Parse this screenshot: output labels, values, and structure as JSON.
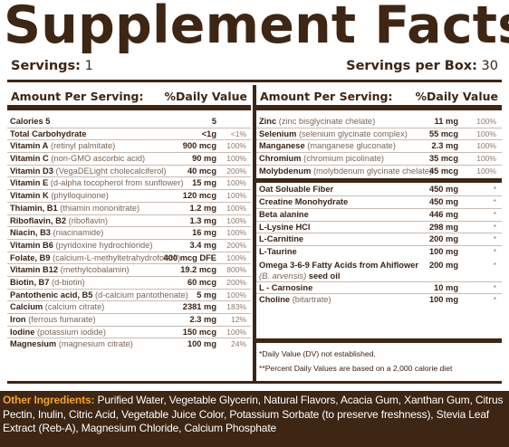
{
  "title": "Supplement Facts",
  "servings": {
    "label": "Servings:",
    "value": "1"
  },
  "servings_per_box": {
    "label": "Servings per Box:",
    "value": "30"
  },
  "left_header": {
    "amount": "Amount Per Serving:",
    "dv": "%Daily Value"
  },
  "right_header": {
    "amount": "Amount Per Serving:",
    "dv": "%Daily Value"
  },
  "left_rows": [
    {
      "name": "Calories 5",
      "detail": "",
      "amount": "5",
      "dv": ""
    },
    {
      "name": "Total Carbohydrate",
      "detail": "",
      "amount": "<1g",
      "dv": "<1%"
    },
    {
      "name": "Vitamin A",
      "detail": "(retinyl palmitate)",
      "amount": "900 mcg",
      "dv": "100%"
    },
    {
      "name": "Vitamin C",
      "detail": "(non-GMO ascorbic acid)",
      "amount": "90 mg",
      "dv": "100%"
    },
    {
      "name": "Vitamin D3",
      "detail": "(VegaDELight cholecalciferol)",
      "amount": "40 mcg",
      "dv": "200%"
    },
    {
      "name": "Vitamin E",
      "detail": "(d-alpha tocopherol from sunflower)",
      "amount": "15 mg",
      "dv": "100%"
    },
    {
      "name": "Vitamin K",
      "detail": "(phylloquinone)",
      "amount": "120 mcg",
      "dv": "100%"
    },
    {
      "name": "Thiamin, B1",
      "detail": "(thiamin mononitrate)",
      "amount": "1.2 mg",
      "dv": "100%"
    },
    {
      "name": "Riboflavin, B2",
      "detail": "(riboflavin)",
      "amount": "1.3 mg",
      "dv": "100%"
    },
    {
      "name": "Niacin, B3",
      "detail": "(niacinamide)",
      "amount": "16 mg",
      "dv": "100%"
    },
    {
      "name": "Vitamin B6",
      "detail": "(pyridoxine hydrochloride)",
      "amount": "3.4 mg",
      "dv": "200%"
    },
    {
      "name": "Folate, B9",
      "detail": "(calcium-L-methyltetrahydrofolate)",
      "amount": "400 mcg DFE",
      "dv": "100%"
    },
    {
      "name": "Vitamin B12",
      "detail": "(methylcobalamin)",
      "amount": "19.2 mcg",
      "dv": "800%"
    },
    {
      "name": "Biotin, B7",
      "detail": "(d-biotin)",
      "amount": "60 mcg",
      "dv": "200%"
    },
    {
      "name": "Pantothenic acid, B5",
      "detail": "(d-calcium pantothenate)",
      "amount": "5 mg",
      "dv": "100%"
    },
    {
      "name": "Calcium",
      "detail": "(calcium citrate)",
      "amount": "2381 mg",
      "dv": "183%"
    },
    {
      "name": "Iron",
      "detail": "(ferrous fumarate)",
      "amount": "2.3 mg",
      "dv": "12%"
    },
    {
      "name": "Iodine",
      "detail": "(potassium iodide)",
      "amount": "150 mcg",
      "dv": "100%"
    },
    {
      "name": "Magnesium",
      "detail": "(magnesium citrate)",
      "amount": "100 mg",
      "dv": "24%"
    }
  ],
  "right_rows_minerals": [
    {
      "name": "Zinc",
      "detail": "(zinc bisglycinate chelate)",
      "amount": "11 mg",
      "dv": "100%"
    },
    {
      "name": "Selenium",
      "detail": "(selenium glycinate complex)",
      "amount": "55 mcg",
      "dv": "100%"
    },
    {
      "name": "Manganese",
      "detail": "(manganese gluconate)",
      "amount": "2.3 mg",
      "dv": "100%"
    },
    {
      "name": "Chromium",
      "detail": "(chromium picolinate)",
      "amount": "35 mcg",
      "dv": "100%"
    },
    {
      "name": "Molybdenum",
      "detail": "(molybdenum glycinate chelate)",
      "amount": "45 mcg",
      "dv": "100%"
    }
  ],
  "right_rows_other": [
    {
      "name": "Oat Soluable Fiber",
      "amount": "450 mg",
      "dv": "*"
    },
    {
      "name": "Creatine Monohydrate",
      "amount": "450 mg",
      "dv": "*"
    },
    {
      "name": "Beta alanine",
      "amount": "446 mg",
      "dv": "*"
    },
    {
      "name": "L-Lysine HCl",
      "amount": "298 mg",
      "dv": "*"
    },
    {
      "name": "L-Carnitine",
      "amount": "200 mg",
      "dv": "*"
    },
    {
      "name": "L-Taurine",
      "amount": "100 mg",
      "dv": "*"
    }
  ],
  "omega": {
    "name": "Omega 3-6-9 Fatty Acids from Ahiflower",
    "detail": "(B. arvensis)",
    "suffix": "seed oil",
    "amount": "200 mg",
    "dv": "*"
  },
  "right_rows_tail": [
    {
      "name": "L - Carnosine",
      "detail": "",
      "amount": "10 mg",
      "dv": "*"
    },
    {
      "name": "Choline",
      "detail": "(bitartrate)",
      "amount": "100 mg",
      "dv": "*"
    }
  ],
  "notes": {
    "dv_not_established": "*Daily Value (DV) not established.",
    "percent_basis": "**Percent Daily Values are based on a 2,000 calorie diet"
  },
  "other_ingredients": {
    "label": "Other Ingredients:",
    "text": "Purified Water, Vegetable Glycerin, Natural Flavors, Acacia Gum, Xanthan Gum, Citrus Pectin, Inulin, Citric Acid, Vegetable Juice Color, Potassium Sorbate (to preserve freshness), Stevia Leaf Extract (Reb-A), Magnesium Chloride, Calcium Phosphate"
  },
  "colors": {
    "brown": "#3d2614",
    "orange": "#f2a227",
    "grey_text": "#8c7a6c"
  }
}
